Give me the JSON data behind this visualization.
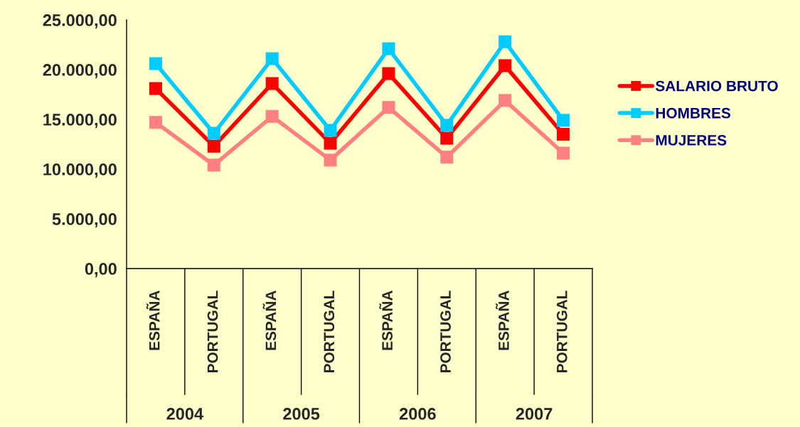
{
  "chart_data": {
    "type": "line",
    "categories": [
      "ESPAÑA",
      "PORTUGAL",
      "ESPAÑA",
      "PORTUGAL",
      "ESPAÑA",
      "PORTUGAL",
      "ESPAÑA",
      "PORTUGAL"
    ],
    "series": [
      {
        "name": "SALARIO BRUTO",
        "color": "#ff0000",
        "values": [
          18100,
          12300,
          18600,
          12600,
          19600,
          13100,
          20400,
          13500
        ]
      },
      {
        "name": "HOMBRES",
        "color": "#00ccff",
        "values": [
          20600,
          13600,
          21100,
          13900,
          22100,
          14400,
          22800,
          14900
        ]
      },
      {
        "name": "MUJERES",
        "color": "#ff8080",
        "values": [
          14700,
          10400,
          15300,
          10900,
          16200,
          11200,
          16900,
          11600
        ]
      }
    ],
    "ylim": [
      0,
      25000
    ],
    "yticks": [
      {
        "value": 0,
        "label": "0,00"
      },
      {
        "value": 5000,
        "label": "5.000,00"
      },
      {
        "value": 10000,
        "label": "10.000,00"
      },
      {
        "value": 15000,
        "label": "15.000,00"
      },
      {
        "value": 20000,
        "label": "20.000,00"
      },
      {
        "value": 25000,
        "label": "25.000,00"
      }
    ],
    "annotations": [
      "2004",
      "2005",
      "2006",
      "2007"
    ],
    "marker": "square",
    "line_style": "solid",
    "legend": "right",
    "grid": false
  }
}
